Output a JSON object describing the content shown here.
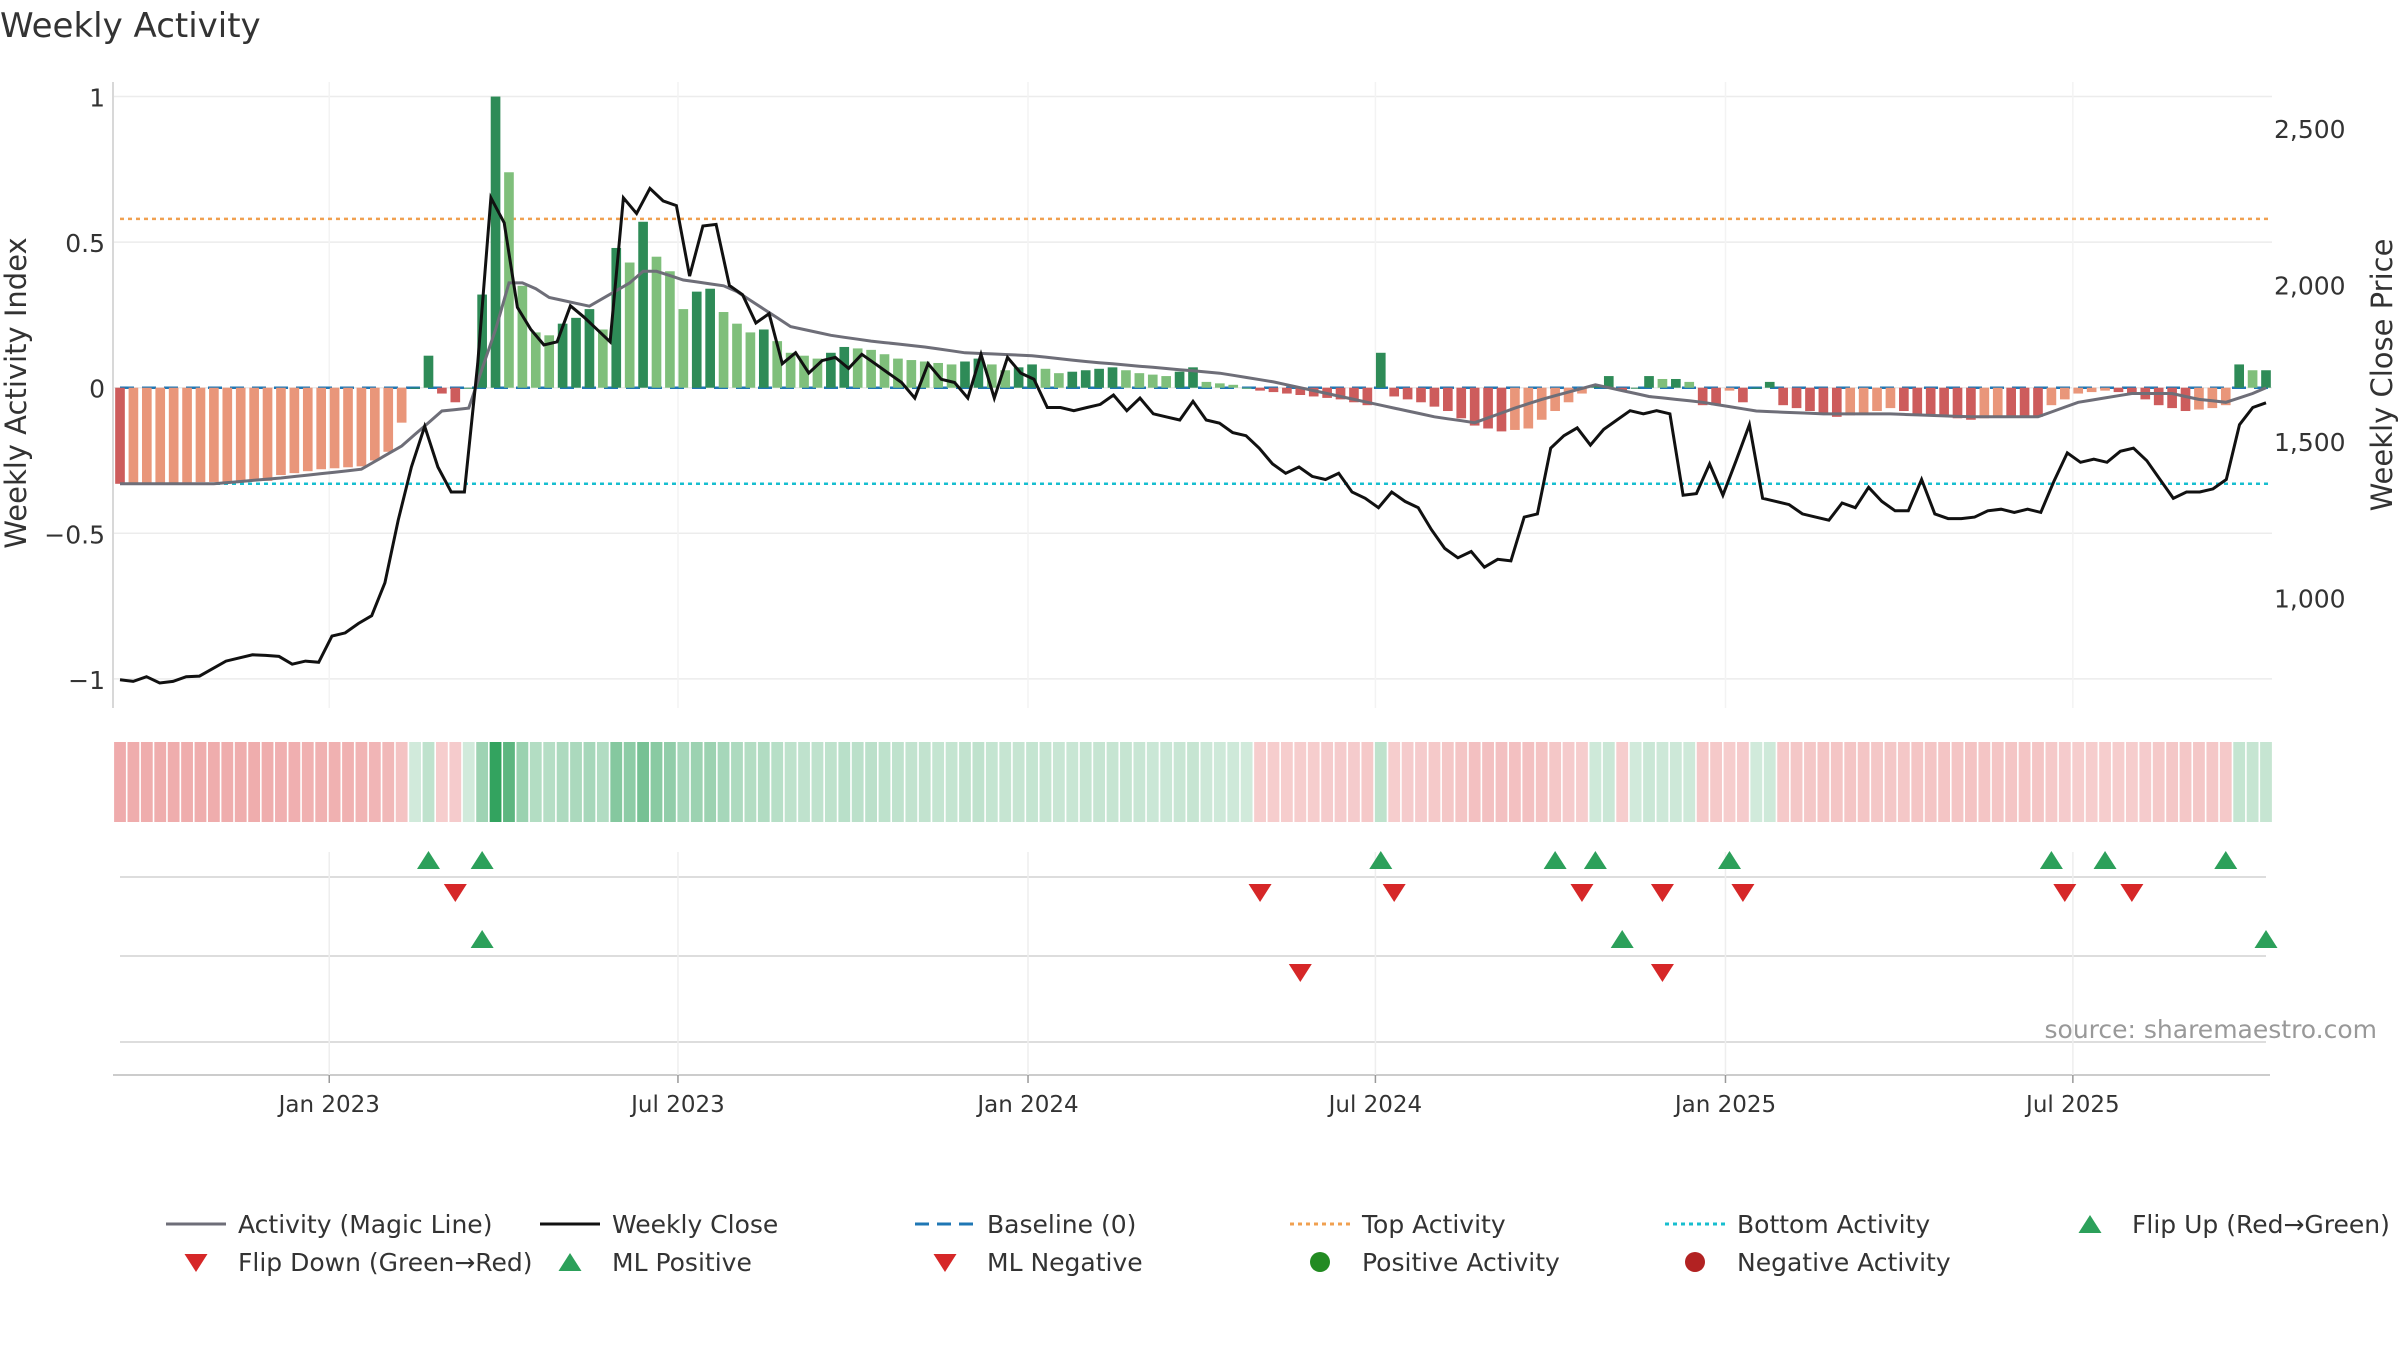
{
  "chart_data": {
    "type": "bar",
    "title": "Weekly Activity",
    "ylabel": "Weekly Activity Index",
    "y2label": "Weekly Close Price",
    "ylim": [
      -1.1,
      1.05
    ],
    "y2lim": [
      650,
      2650
    ],
    "yticks": [
      1,
      0.5,
      0,
      -0.5,
      -1
    ],
    "ytick_labels": [
      "1",
      "0.5",
      "0",
      "−0.5",
      "−1"
    ],
    "y2ticks": [
      2500,
      2000,
      1500,
      1000
    ],
    "y2tick_labels": [
      "2,500",
      "2,000",
      "1,500",
      "1,000"
    ],
    "x_start": "2022-09-12",
    "x_end": "2025-10-13",
    "weeks": 161,
    "xtick_labels": [
      "Jan 2023",
      "Jul 2023",
      "Jan 2024",
      "Jul 2024",
      "Jan 2025",
      "Jul 2025"
    ],
    "xtick_week_index": [
      15.6,
      41.6,
      67.7,
      93.6,
      119.7,
      145.6
    ],
    "top_activity": 0.58,
    "bottom_activity": -0.33,
    "baseline": 0,
    "activity_keypoints": [
      [
        0,
        -0.33
      ],
      [
        7,
        -0.33
      ],
      [
        12,
        -0.31
      ],
      [
        18,
        -0.28
      ],
      [
        21,
        -0.2
      ],
      [
        24,
        -0.08
      ],
      [
        26,
        -0.07
      ],
      [
        28,
        0.2
      ],
      [
        29,
        0.36
      ],
      [
        30,
        0.36
      ],
      [
        31,
        0.34
      ],
      [
        32,
        0.31
      ],
      [
        35,
        0.28
      ],
      [
        38,
        0.36
      ],
      [
        39,
        0.4
      ],
      [
        40,
        0.4
      ],
      [
        42,
        0.37
      ],
      [
        45,
        0.35
      ],
      [
        46,
        0.33
      ],
      [
        48,
        0.27
      ],
      [
        50,
        0.21
      ],
      [
        53,
        0.18
      ],
      [
        56,
        0.16
      ],
      [
        60,
        0.14
      ],
      [
        63,
        0.12
      ],
      [
        68,
        0.11
      ],
      [
        72,
        0.09
      ],
      [
        77,
        0.07
      ],
      [
        82,
        0.05
      ],
      [
        86,
        0.02
      ],
      [
        90,
        -0.02
      ],
      [
        94,
        -0.06
      ],
      [
        98,
        -0.1
      ],
      [
        101,
        -0.12
      ],
      [
        104,
        -0.07
      ],
      [
        106,
        -0.04
      ],
      [
        110,
        0.01
      ],
      [
        114,
        -0.03
      ],
      [
        118,
        -0.05
      ],
      [
        122,
        -0.08
      ],
      [
        127,
        -0.09
      ],
      [
        132,
        -0.09
      ],
      [
        138,
        -0.1
      ],
      [
        143,
        -0.1
      ],
      [
        146,
        -0.05
      ],
      [
        150,
        -0.02
      ],
      [
        153,
        -0.02
      ],
      [
        155,
        -0.04
      ],
      [
        157,
        -0.05
      ],
      [
        159,
        -0.02
      ],
      [
        160,
        0.0
      ]
    ],
    "close_keypoints": [
      [
        0,
        740
      ],
      [
        1,
        735
      ],
      [
        2,
        750
      ],
      [
        3,
        730
      ],
      [
        4,
        735
      ],
      [
        5,
        750
      ],
      [
        6,
        752
      ],
      [
        8,
        800
      ],
      [
        9,
        810
      ],
      [
        10,
        820
      ],
      [
        11,
        818
      ],
      [
        12,
        815
      ],
      [
        13,
        790
      ],
      [
        14,
        800
      ],
      [
        15,
        796
      ],
      [
        16,
        880
      ],
      [
        17,
        890
      ],
      [
        18,
        920
      ],
      [
        19,
        945
      ],
      [
        20,
        1050
      ],
      [
        21,
        1250
      ],
      [
        22,
        1420
      ],
      [
        23,
        1550
      ],
      [
        24,
        1420
      ],
      [
        25,
        1340
      ],
      [
        26,
        1340
      ],
      [
        27,
        1750
      ],
      [
        28,
        2280
      ],
      [
        29,
        2200
      ],
      [
        30,
        1930
      ],
      [
        31,
        1860
      ],
      [
        32,
        1810
      ],
      [
        33,
        1820
      ],
      [
        34,
        1935
      ],
      [
        35,
        1900
      ],
      [
        36,
        1860
      ],
      [
        37,
        1820
      ],
      [
        38,
        2280
      ],
      [
        39,
        2230
      ],
      [
        40,
        2310
      ],
      [
        41,
        2270
      ],
      [
        42,
        2255
      ],
      [
        43,
        2030
      ],
      [
        44,
        2190
      ],
      [
        45,
        2195
      ],
      [
        46,
        2000
      ],
      [
        47,
        1970
      ],
      [
        48,
        1880
      ],
      [
        49,
        1910
      ],
      [
        50,
        1750
      ],
      [
        51,
        1785
      ],
      [
        52,
        1720
      ],
      [
        53,
        1760
      ],
      [
        54,
        1770
      ],
      [
        55,
        1735
      ],
      [
        56,
        1780
      ],
      [
        57,
        1750
      ],
      [
        58,
        1720
      ],
      [
        59,
        1690
      ],
      [
        60,
        1640
      ],
      [
        61,
        1750
      ],
      [
        62,
        1700
      ],
      [
        63,
        1690
      ],
      [
        64,
        1640
      ],
      [
        65,
        1780
      ],
      [
        66,
        1640
      ],
      [
        67,
        1770
      ],
      [
        68,
        1720
      ],
      [
        69,
        1700
      ],
      [
        70,
        1610
      ],
      [
        71,
        1610
      ],
      [
        72,
        1600
      ],
      [
        73,
        1610
      ],
      [
        74,
        1620
      ],
      [
        75,
        1650
      ],
      [
        76,
        1600
      ],
      [
        77,
        1640
      ],
      [
        78,
        1590
      ],
      [
        79,
        1580
      ],
      [
        80,
        1570
      ],
      [
        81,
        1630
      ],
      [
        82,
        1570
      ],
      [
        83,
        1560
      ],
      [
        84,
        1530
      ],
      [
        85,
        1520
      ],
      [
        86,
        1480
      ],
      [
        87,
        1430
      ],
      [
        88,
        1400
      ],
      [
        89,
        1420
      ],
      [
        90,
        1390
      ],
      [
        91,
        1380
      ],
      [
        92,
        1400
      ],
      [
        93,
        1340
      ],
      [
        94,
        1320
      ],
      [
        95,
        1290
      ],
      [
        96,
        1340
      ],
      [
        97,
        1310
      ],
      [
        98,
        1290
      ],
      [
        99,
        1220
      ],
      [
        100,
        1160
      ],
      [
        101,
        1130
      ],
      [
        102,
        1150
      ],
      [
        103,
        1100
      ],
      [
        104,
        1125
      ],
      [
        105,
        1120
      ],
      [
        106,
        1260
      ],
      [
        107,
        1270
      ],
      [
        108,
        1480
      ],
      [
        109,
        1520
      ],
      [
        110,
        1545
      ],
      [
        111,
        1490
      ],
      [
        112,
        1540
      ],
      [
        113,
        1570
      ],
      [
        114,
        1600
      ],
      [
        115,
        1590
      ],
      [
        116,
        1600
      ],
      [
        117,
        1590
      ],
      [
        118,
        1330
      ],
      [
        119,
        1335
      ],
      [
        120,
        1430
      ],
      [
        121,
        1330
      ],
      [
        122,
        1440
      ],
      [
        123,
        1555
      ],
      [
        124,
        1320
      ],
      [
        125,
        1310
      ],
      [
        126,
        1300
      ],
      [
        127,
        1270
      ],
      [
        128,
        1260
      ],
      [
        129,
        1250
      ],
      [
        130,
        1305
      ],
      [
        131,
        1290
      ],
      [
        132,
        1355
      ],
      [
        133,
        1310
      ],
      [
        134,
        1280
      ],
      [
        135,
        1280
      ],
      [
        136,
        1380
      ],
      [
        137,
        1270
      ],
      [
        138,
        1255
      ],
      [
        139,
        1255
      ],
      [
        140,
        1260
      ],
      [
        141,
        1280
      ],
      [
        142,
        1285
      ],
      [
        143,
        1275
      ],
      [
        144,
        1285
      ],
      [
        145,
        1275
      ],
      [
        146,
        1375
      ],
      [
        147,
        1465
      ],
      [
        148,
        1435
      ],
      [
        149,
        1445
      ],
      [
        150,
        1435
      ],
      [
        151,
        1470
      ],
      [
        152,
        1480
      ],
      [
        153,
        1440
      ],
      [
        154,
        1380
      ],
      [
        155,
        1320
      ],
      [
        156,
        1340
      ],
      [
        157,
        1340
      ],
      [
        158,
        1350
      ],
      [
        159,
        1380
      ],
      [
        160,
        1555
      ],
      [
        161,
        1610
      ],
      [
        162,
        1625
      ]
    ],
    "activity_bar_keypoints": [
      [
        0,
        -0.33
      ],
      [
        11,
        -0.32
      ],
      [
        12,
        -0.3
      ],
      [
        15,
        -0.28
      ],
      [
        18,
        -0.27
      ],
      [
        19,
        -0.25
      ],
      [
        20,
        -0.22
      ],
      [
        21,
        -0.12
      ],
      [
        22,
        0.0
      ],
      [
        23,
        0.11
      ],
      [
        24,
        -0.02
      ],
      [
        25,
        -0.05
      ],
      [
        26,
        0.0
      ],
      [
        27,
        0.32
      ],
      [
        28,
        1.0
      ],
      [
        29,
        0.74
      ],
      [
        30,
        0.35
      ],
      [
        31,
        0.19
      ],
      [
        32,
        0.18
      ],
      [
        33,
        0.22
      ],
      [
        34,
        0.24
      ],
      [
        35,
        0.27
      ],
      [
        36,
        0.2
      ],
      [
        37,
        0.48
      ],
      [
        38,
        0.43
      ],
      [
        39,
        0.57
      ],
      [
        40,
        0.45
      ],
      [
        41,
        0.4
      ],
      [
        42,
        0.27
      ],
      [
        43,
        0.33
      ],
      [
        44,
        0.34
      ],
      [
        45,
        0.26
      ],
      [
        46,
        0.22
      ],
      [
        47,
        0.19
      ],
      [
        48,
        0.2
      ],
      [
        50,
        0.12
      ],
      [
        52,
        0.1
      ],
      [
        54,
        0.14
      ],
      [
        56,
        0.13
      ],
      [
        58,
        0.1
      ],
      [
        60,
        0.09
      ],
      [
        62,
        0.08
      ],
      [
        64,
        0.1
      ],
      [
        66,
        0.06
      ],
      [
        68,
        0.08
      ],
      [
        70,
        0.05
      ],
      [
        72,
        0.06
      ],
      [
        74,
        0.07
      ],
      [
        76,
        0.05
      ],
      [
        78,
        0.04
      ],
      [
        80,
        0.07
      ],
      [
        81,
        0.02
      ],
      [
        83,
        0.01
      ],
      [
        85,
        -0.01
      ],
      [
        87,
        -0.02
      ],
      [
        89,
        -0.03
      ],
      [
        91,
        -0.04
      ],
      [
        93,
        -0.06
      ],
      [
        94,
        0.12
      ],
      [
        95,
        -0.03
      ],
      [
        97,
        -0.05
      ],
      [
        99,
        -0.08
      ],
      [
        101,
        -0.13
      ],
      [
        103,
        -0.15
      ],
      [
        105,
        -0.14
      ],
      [
        107,
        -0.08
      ],
      [
        109,
        -0.02
      ],
      [
        111,
        0.04
      ],
      [
        112,
        -0.01
      ],
      [
        113,
        0.0
      ],
      [
        114,
        0.04
      ],
      [
        115,
        0.03
      ],
      [
        116,
        0.03
      ],
      [
        117,
        0.02
      ],
      [
        118,
        -0.06
      ],
      [
        119,
        -0.06
      ],
      [
        120,
        -0.01
      ],
      [
        121,
        -0.05
      ],
      [
        122,
        0.0
      ],
      [
        123,
        0.02
      ],
      [
        124,
        -0.06
      ],
      [
        126,
        -0.08
      ],
      [
        128,
        -0.1
      ],
      [
        130,
        -0.09
      ],
      [
        132,
        -0.07
      ],
      [
        134,
        -0.09
      ],
      [
        136,
        -0.1
      ],
      [
        138,
        -0.11
      ],
      [
        140,
        -0.1
      ],
      [
        142,
        -0.1
      ],
      [
        143,
        -0.1
      ],
      [
        144,
        -0.06
      ],
      [
        146,
        -0.02
      ],
      [
        148,
        -0.01
      ],
      [
        150,
        -0.02
      ],
      [
        152,
        -0.06
      ],
      [
        154,
        -0.08
      ],
      [
        156,
        -0.07
      ],
      [
        157,
        -0.06
      ],
      [
        158,
        0.08
      ],
      [
        159,
        0.06
      ],
      [
        160,
        0.06
      ]
    ],
    "flip_up_weeks": [
      23,
      27,
      94,
      107,
      110,
      120,
      144,
      148,
      157
    ],
    "flip_down_weeks": [
      25,
      85,
      95,
      109,
      115,
      121,
      145,
      150
    ],
    "ml_positive_weeks": [
      27,
      112,
      161
    ],
    "ml_negative_weeks": [
      88,
      115
    ],
    "colors": {
      "activity_line": "#6e6e78",
      "close_line": "#111111",
      "baseline": "#1f77b4",
      "top_activity": "#f0a050",
      "bottom_activity": "#17becf",
      "pos_strong": "#2e8b57",
      "pos_light": "#7fbf7b",
      "neg_strong": "#cd5c5c",
      "neg_light": "#e9967a",
      "flip_up": "#2ca05a",
      "flip_down": "#d62728",
      "positive_activity": "#228b22",
      "negative_activity": "#b22222"
    },
    "legend": [
      {
        "label": "Activity (Magic Line)",
        "kind": "line-gray"
      },
      {
        "label": "Weekly Close",
        "kind": "line-black"
      },
      {
        "label": "Baseline (0)",
        "kind": "line-dashed-blue"
      },
      {
        "label": "Top Activity",
        "kind": "line-dotted-orange"
      },
      {
        "label": "Bottom Activity",
        "kind": "line-dotted-cyan"
      },
      {
        "label": "Flip Up (Red→Green)",
        "kind": "triangle-up-green"
      },
      {
        "label": "Flip Down (Green→Red)",
        "kind": "triangle-down-red"
      },
      {
        "label": "ML Positive",
        "kind": "triangle-up-green"
      },
      {
        "label": "ML Negative",
        "kind": "triangle-down-red"
      },
      {
        "label": "Positive Activity",
        "kind": "dot-green"
      },
      {
        "label": "Negative Activity",
        "kind": "dot-red"
      }
    ],
    "legend_position": "bottom",
    "source": "source: sharemaestro.com"
  }
}
